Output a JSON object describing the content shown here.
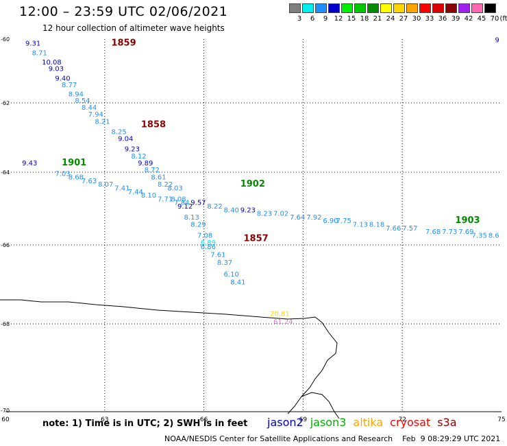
{
  "header": {
    "title": "12:00 – 23:59 UTC 02/06/2021",
    "subtitle": "12 hour collection of altimeter wave heights"
  },
  "colorbar": {
    "unit": "(ft)",
    "items": [
      {
        "label": "3",
        "color": "#7f7f7f"
      },
      {
        "label": "6",
        "color": "#00eeee"
      },
      {
        "label": "9",
        "color": "#1e90ff"
      },
      {
        "label": "12",
        "color": "#0000cd"
      },
      {
        "label": "15",
        "color": "#00ee00"
      },
      {
        "label": "18",
        "color": "#00c800"
      },
      {
        "label": "21",
        "color": "#008b00"
      },
      {
        "label": "24",
        "color": "#ffff00"
      },
      {
        "label": "27",
        "color": "#ffd700"
      },
      {
        "label": "30",
        "color": "#ffa500"
      },
      {
        "label": "33",
        "color": "#ff0000"
      },
      {
        "label": "36",
        "color": "#dc0000"
      },
      {
        "label": "39",
        "color": "#8b0000"
      },
      {
        "label": "42",
        "color": "#a020f0"
      },
      {
        "label": "45",
        "color": "#ff69b4"
      },
      {
        "label": "70",
        "color": "#000000"
      }
    ]
  },
  "axes": {
    "lon_ticks": [
      "60",
      "63",
      "66",
      "69",
      "72",
      "75"
    ],
    "lat_ticks": [
      "-60",
      "-62",
      "-64",
      "-66",
      "-68",
      "-70"
    ]
  },
  "time_labels": [
    {
      "text": "1859",
      "lon": 63.2,
      "lat": -60.2,
      "color": "#8b0000"
    },
    {
      "text": "1858",
      "lon": 64.1,
      "lat": -62.7,
      "color": "#8b0000"
    },
    {
      "text": "1901",
      "lon": 61.7,
      "lat": -63.8,
      "color": "#008b00"
    },
    {
      "text": "1902",
      "lon": 67.1,
      "lat": -64.4,
      "color": "#008b00"
    },
    {
      "text": "1857",
      "lon": 67.2,
      "lat": -65.9,
      "color": "#8b0000"
    },
    {
      "text": "1903",
      "lon": 73.6,
      "lat": -65.4,
      "color": "#008b00"
    }
  ],
  "wave_readings": [
    {
      "text": "9",
      "lon": 74.8,
      "lat": -60.1,
      "color": "#0000cd"
    },
    {
      "text": "9.31",
      "lon": 60.6,
      "lat": -60.2,
      "color": "#0000cd"
    },
    {
      "text": "8.71",
      "lon": 60.8,
      "lat": -60.5,
      "color": "#1e90ff"
    },
    {
      "text": "10.08",
      "lon": 61.1,
      "lat": -60.8,
      "color": "#0000cd"
    },
    {
      "text": "9.03",
      "lon": 61.3,
      "lat": -61.0,
      "color": "#0000cd"
    },
    {
      "text": "9.40",
      "lon": 61.5,
      "lat": -61.3,
      "color": "#0000cd"
    },
    {
      "text": "8.77",
      "lon": 61.7,
      "lat": -61.5,
      "color": "#1e90ff"
    },
    {
      "text": "8.94",
      "lon": 61.9,
      "lat": -61.8,
      "color": "#1e90ff"
    },
    {
      "text": "8.54",
      "lon": 62.1,
      "lat": -62.0,
      "color": "#1e90ff"
    },
    {
      "text": "8.44",
      "lon": 62.3,
      "lat": -62.2,
      "color": "#1e90ff"
    },
    {
      "text": "7.94",
      "lon": 62.5,
      "lat": -62.4,
      "color": "#1e90ff"
    },
    {
      "text": "8.21",
      "lon": 62.7,
      "lat": -62.6,
      "color": "#1e90ff"
    },
    {
      "text": "8.25",
      "lon": 63.2,
      "lat": -62.9,
      "color": "#1e90ff"
    },
    {
      "text": "9.04",
      "lon": 63.4,
      "lat": -63.1,
      "color": "#0000cd"
    },
    {
      "text": "9.23",
      "lon": 63.6,
      "lat": -63.4,
      "color": "#0000cd"
    },
    {
      "text": "8.12",
      "lon": 63.8,
      "lat": -63.6,
      "color": "#1e90ff"
    },
    {
      "text": "9.89",
      "lon": 64.0,
      "lat": -63.8,
      "color": "#0000cd"
    },
    {
      "text": "8.72",
      "lon": 64.2,
      "lat": -64.0,
      "color": "#1e90ff"
    },
    {
      "text": "8.61",
      "lon": 64.4,
      "lat": -64.2,
      "color": "#1e90ff"
    },
    {
      "text": "8.22",
      "lon": 64.6,
      "lat": -64.4,
      "color": "#1e90ff"
    },
    {
      "text": "8.03",
      "lon": 64.9,
      "lat": -64.5,
      "color": "#1e90ff"
    },
    {
      "text": "8.08",
      "lon": 65.0,
      "lat": -64.8,
      "color": "#1e90ff"
    },
    {
      "text": "9.12",
      "lon": 65.2,
      "lat": -65.0,
      "color": "#0000cd"
    },
    {
      "text": "8.13",
      "lon": 65.4,
      "lat": -65.3,
      "color": "#1e90ff"
    },
    {
      "text": "8.29",
      "lon": 65.6,
      "lat": -65.5,
      "color": "#1e90ff"
    },
    {
      "text": "7.08",
      "lon": 65.8,
      "lat": -65.8,
      "color": "#1e90ff"
    },
    {
      "text": "6.89",
      "lon": 65.9,
      "lat": -66.0,
      "color": "#00eeee"
    },
    {
      "text": "6.86",
      "lon": 65.9,
      "lat": -66.1,
      "color": "#1e90ff"
    },
    {
      "text": "7.61",
      "lon": 66.2,
      "lat": -66.3,
      "color": "#1e90ff"
    },
    {
      "text": "8.37",
      "lon": 66.4,
      "lat": -66.5,
      "color": "#1e90ff"
    },
    {
      "text": "6.10",
      "lon": 66.6,
      "lat": -66.8,
      "color": "#1e90ff"
    },
    {
      "text": "8.41",
      "lon": 66.8,
      "lat": -67.0,
      "color": "#1e90ff"
    },
    {
      "text": "9.43",
      "lon": 60.5,
      "lat": -63.8,
      "color": "#0000cd"
    },
    {
      "text": "7.03",
      "lon": 61.5,
      "lat": -64.1,
      "color": "#1e90ff"
    },
    {
      "text": "8.68",
      "lon": 61.9,
      "lat": -64.2,
      "color": "#1e90ff"
    },
    {
      "text": "7.63",
      "lon": 62.3,
      "lat": -64.3,
      "color": "#1e90ff"
    },
    {
      "text": "8.07",
      "lon": 62.8,
      "lat": -64.4,
      "color": "#1e90ff"
    },
    {
      "text": "7.41",
      "lon": 63.3,
      "lat": -64.5,
      "color": "#1e90ff"
    },
    {
      "text": "7.44",
      "lon": 63.7,
      "lat": -64.6,
      "color": "#1e90ff"
    },
    {
      "text": "8.10",
      "lon": 64.1,
      "lat": -64.7,
      "color": "#1e90ff"
    },
    {
      "text": "7.71",
      "lon": 64.6,
      "lat": -64.8,
      "color": "#1e90ff"
    },
    {
      "text": "7.84",
      "lon": 65.1,
      "lat": -64.9,
      "color": "#1e90ff"
    },
    {
      "text": "9.57",
      "lon": 65.6,
      "lat": -64.9,
      "color": "#0000cd"
    },
    {
      "text": "8.22",
      "lon": 66.1,
      "lat": -65.0,
      "color": "#1e90ff"
    },
    {
      "text": "8.40",
      "lon": 66.6,
      "lat": -65.1,
      "color": "#1e90ff"
    },
    {
      "text": "9.23",
      "lon": 67.1,
      "lat": -65.1,
      "color": "#0000cd"
    },
    {
      "text": "8.23",
      "lon": 67.6,
      "lat": -65.2,
      "color": "#1e90ff"
    },
    {
      "text": "7.02",
      "lon": 68.1,
      "lat": -65.2,
      "color": "#1e90ff"
    },
    {
      "text": "7.64",
      "lon": 68.6,
      "lat": -65.3,
      "color": "#1e90ff"
    },
    {
      "text": "7.92",
      "lon": 69.1,
      "lat": -65.3,
      "color": "#1e90ff"
    },
    {
      "text": "6.90",
      "lon": 69.6,
      "lat": -65.4,
      "color": "#1e90ff"
    },
    {
      "text": "7.75",
      "lon": 70.0,
      "lat": -65.4,
      "color": "#1e90ff"
    },
    {
      "text": "7.13",
      "lon": 70.5,
      "lat": -65.5,
      "color": "#1e90ff"
    },
    {
      "text": "8.18",
      "lon": 71.0,
      "lat": -65.5,
      "color": "#1e90ff"
    },
    {
      "text": "7.66",
      "lon": 71.5,
      "lat": -65.6,
      "color": "#1e90ff"
    },
    {
      "text": "7.57",
      "lon": 72.0,
      "lat": -65.6,
      "color": "#1e90ff"
    },
    {
      "text": "7.68",
      "lon": 72.7,
      "lat": -65.7,
      "color": "#1e90ff"
    },
    {
      "text": "7.73",
      "lon": 73.2,
      "lat": -65.7,
      "color": "#1e90ff"
    },
    {
      "text": "7.69",
      "lon": 73.7,
      "lat": -65.7,
      "color": "#1e90ff"
    },
    {
      "text": "7.35",
      "lon": 74.1,
      "lat": -65.8,
      "color": "#1e90ff"
    },
    {
      "text": "8.6",
      "lon": 74.6,
      "lat": -65.8,
      "color": "#1e90ff"
    },
    {
      "text": "20.81",
      "lon": 68.0,
      "lat": -67.8,
      "color": "#ffd700"
    },
    {
      "text": "61.24",
      "lon": 68.1,
      "lat": -68.0,
      "color": "#da70d6"
    }
  ],
  "footer": {
    "note": "note:  1) Time is in UTC;  2) SWH is in feet",
    "satellites": [
      {
        "name": "jason2",
        "color": "#0000cd"
      },
      {
        "name": "jason3",
        "color": "#00b000"
      },
      {
        "name": "altika",
        "color": "#ffa500"
      },
      {
        "name": "cryosat",
        "color": "#ff0000"
      },
      {
        "name": "s3a",
        "color": "#8b0000"
      }
    ],
    "credit": "NOAA/NESDIS Center for Satellite Applications and Research    Feb  9 08:29:29 UTC 2021"
  }
}
